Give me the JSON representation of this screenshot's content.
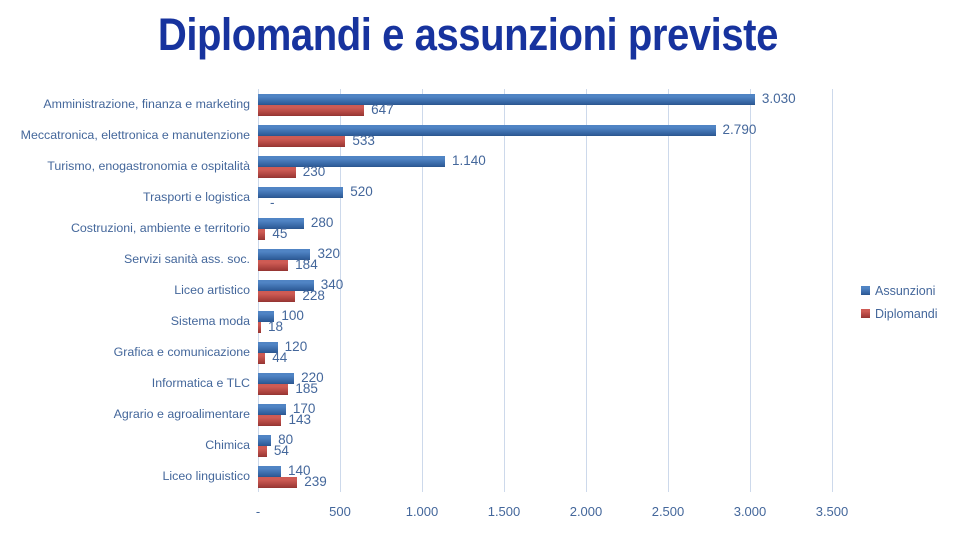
{
  "title": "Diplomandi e assunzioni previste",
  "colors": {
    "title_text": "#17339E",
    "chart_text": "#44679B",
    "gridline": "#CDD9EB",
    "assunzioni_fill_top": "#5084C4",
    "assunzioni_fill_bottom": "#2E5C99",
    "assunzioni_edge": "#2A5287",
    "diplomandi_fill_top": "#CE5B54",
    "diplomandi_fill_bottom": "#9E3936",
    "diplomandi_edge": "#8F3330",
    "background": "#FFFFFF"
  },
  "chart_data": {
    "type": "bar",
    "orientation": "horizontal",
    "title": "Diplomandi e assunzioni previste",
    "xlabel": "",
    "ylabel": "",
    "xlim": [
      0,
      3500
    ],
    "xticks": [
      0,
      500,
      1000,
      1500,
      2000,
      2500,
      3000,
      3500
    ],
    "xtick_labels": [
      "-",
      "500",
      "1.000",
      "1.500",
      "2.000",
      "2.500",
      "3.000",
      "3.500"
    ],
    "grid": "vertical",
    "legend_position": "right",
    "categories": [
      "Amministrazione, finanza e marketing",
      "Meccatronica, elettronica e manutenzione",
      "Turismo, enogastronomia e ospitalità",
      "Trasporti e logistica",
      "Costruzioni, ambiente e territorio",
      "Servizi sanità ass. soc.",
      "Liceo artistico",
      "Sistema moda",
      "Grafica e comunicazione",
      "Informatica e TLC",
      "Agrario e agroalimentare",
      "Chimica",
      "Liceo linguistico"
    ],
    "series": [
      {
        "name": "Assunzioni",
        "color": "#4F81BD",
        "values": [
          3030,
          2790,
          1140,
          520,
          280,
          320,
          340,
          100,
          120,
          220,
          170,
          80,
          140
        ],
        "data_labels": [
          "3.030",
          "2.790",
          "1.140",
          "520",
          "280",
          "320",
          "340",
          "100",
          "120",
          "220",
          "170",
          "80",
          "140"
        ]
      },
      {
        "name": "Diplomandi",
        "color": "#C0504D",
        "values": [
          647,
          533,
          230,
          0,
          45,
          184,
          228,
          18,
          44,
          185,
          143,
          54,
          239
        ],
        "data_labels": [
          "647",
          "533",
          "230",
          "-",
          "45",
          "184",
          "228",
          "18",
          "44",
          "185",
          "143",
          "54",
          "239"
        ]
      }
    ]
  }
}
